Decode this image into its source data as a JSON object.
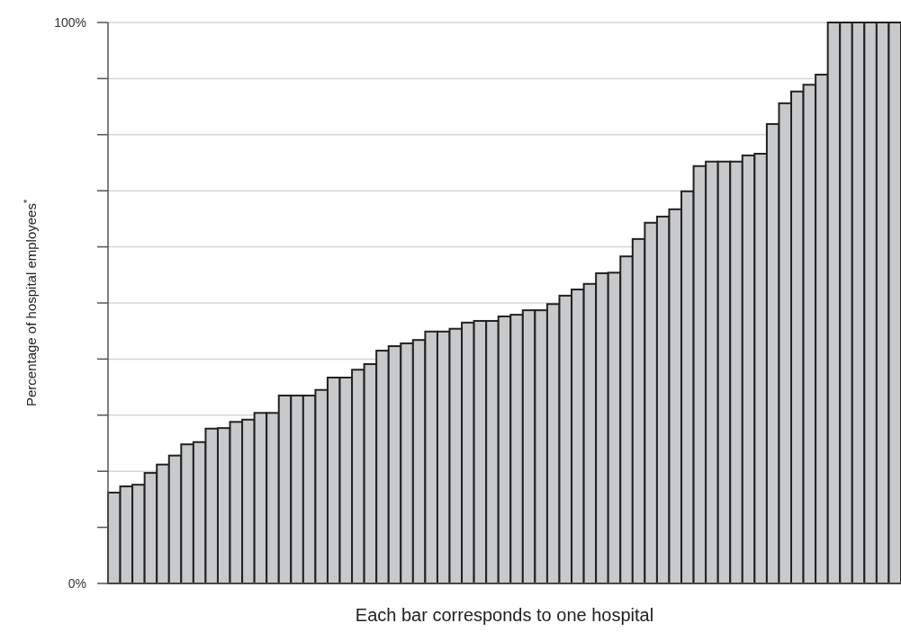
{
  "chart_data": {
    "type": "bar",
    "xlabel": "Each bar corresponds to one hospital",
    "ylabel": "Percentage of hospital employees$^{*}$",
    "categories": [
      null,
      null,
      null,
      null,
      null,
      null,
      null,
      null,
      null,
      null,
      null,
      null,
      null,
      null,
      null,
      null,
      null,
      null,
      null,
      null,
      null,
      null,
      null,
      null,
      null,
      null,
      null,
      null,
      null,
      null,
      null,
      null,
      null,
      null,
      null,
      null,
      null,
      null,
      null,
      null,
      null,
      null,
      null,
      null,
      null,
      null,
      null,
      null,
      null,
      null,
      null,
      null,
      null,
      null,
      null,
      null,
      null,
      null,
      null,
      null,
      null,
      null,
      null,
      null,
      null
    ],
    "values": [
      16.2,
      17.3,
      17.6,
      19.7,
      21.2,
      22.8,
      24.8,
      25.2,
      27.6,
      27.7,
      28.8,
      29.2,
      30.4,
      30.4,
      33.5,
      33.5,
      33.5,
      34.5,
      36.7,
      36.7,
      38.1,
      39.1,
      41.5,
      42.3,
      42.8,
      43.4,
      44.9,
      44.9,
      45.4,
      46.5,
      46.8,
      46.8,
      47.6,
      47.9,
      48.7,
      48.7,
      49.8,
      51.3,
      52.4,
      53.4,
      55.3,
      55.4,
      58.3,
      61.4,
      64.3,
      65.4,
      66.7,
      69.9,
      74.4,
      75.2,
      75.2,
      75.2,
      76.3,
      76.6,
      81.9,
      85.6,
      87.7,
      88.9,
      90.7,
      100,
      100,
      100,
      100,
      100,
      100
    ],
    "color": "#c8c9cb",
    "ylim": [
      0,
      100
    ],
    "yticks": [
      {
        "value": 0,
        "label": "0%"
      },
      {
        "value": 10,
        "label": null
      },
      {
        "value": 20,
        "label": null
      },
      {
        "value": 30,
        "label": null
      },
      {
        "value": 40,
        "label": null
      },
      {
        "value": 50,
        "label": null
      },
      {
        "value": 60,
        "label": null
      },
      {
        "value": 70,
        "label": null
      },
      {
        "value": 80,
        "label": null
      },
      {
        "value": 90,
        "label": null
      },
      {
        "value": 100,
        "label": "100%"
      }
    ],
    "grid": "y"
  }
}
